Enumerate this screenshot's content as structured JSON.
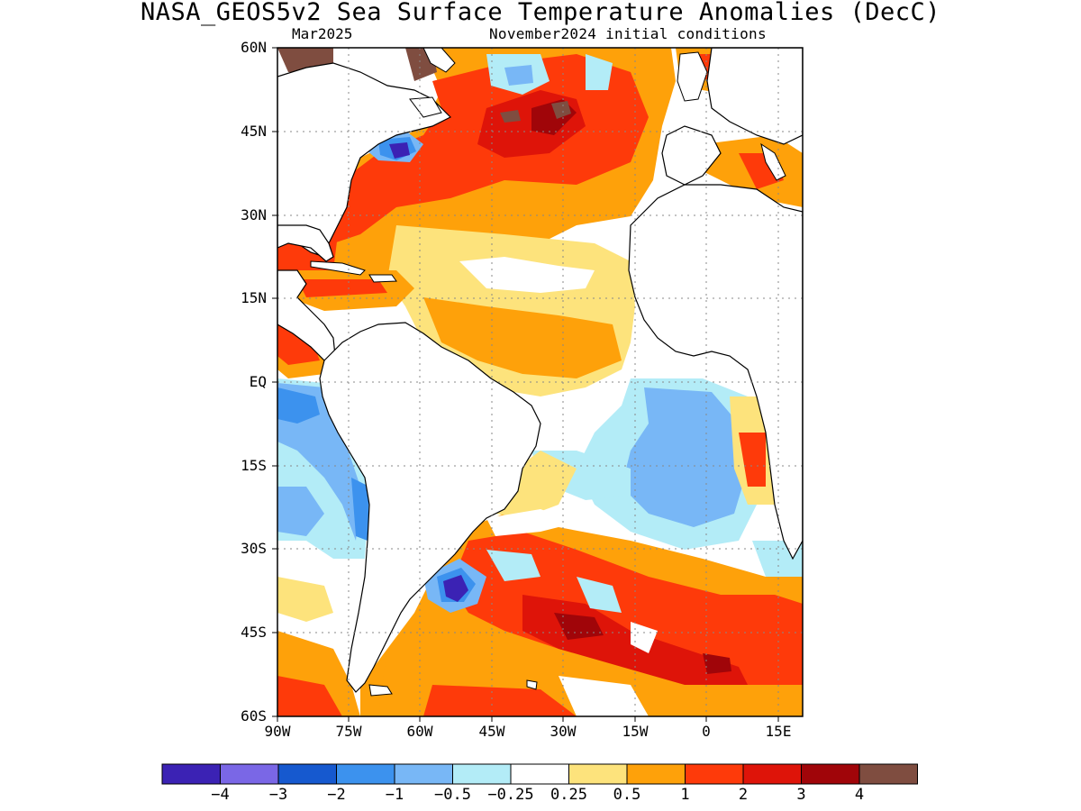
{
  "title": "NASA_GEOS5v2 Sea Surface Temperature Anomalies (DecC)",
  "subtitle_left": "Mar2025",
  "subtitle_right": "November2024 initial conditions",
  "map": {
    "lat_labels": [
      "60N",
      "45N",
      "30N",
      "15N",
      "EQ",
      "15S",
      "30S",
      "45S",
      "60S"
    ],
    "lon_labels": [
      "90W",
      "75W",
      "60W",
      "45W",
      "30W",
      "15W",
      "0",
      "15E"
    ],
    "lat_range": [
      -60,
      60
    ],
    "lon_range": [
      -90,
      20
    ],
    "grid": "dotted"
  },
  "colorbar": {
    "colors": [
      "#3b22b4",
      "#7a67e6",
      "#1659cf",
      "#3c92ee",
      "#78b7f6",
      "#b3ecf7",
      "#ffffff",
      "#fde37c",
      "#fea10a",
      "#fe3a0a",
      "#de1409",
      "#a00509",
      "#7f4d40"
    ],
    "labels": [
      "−4",
      "−3",
      "−2",
      "−1",
      "−0.5",
      "−0.25",
      "0.25",
      "0.5",
      "1",
      "2",
      "3",
      "4"
    ]
  },
  "colors": {
    "land": "#ffffff",
    "coastline": "#000000"
  }
}
